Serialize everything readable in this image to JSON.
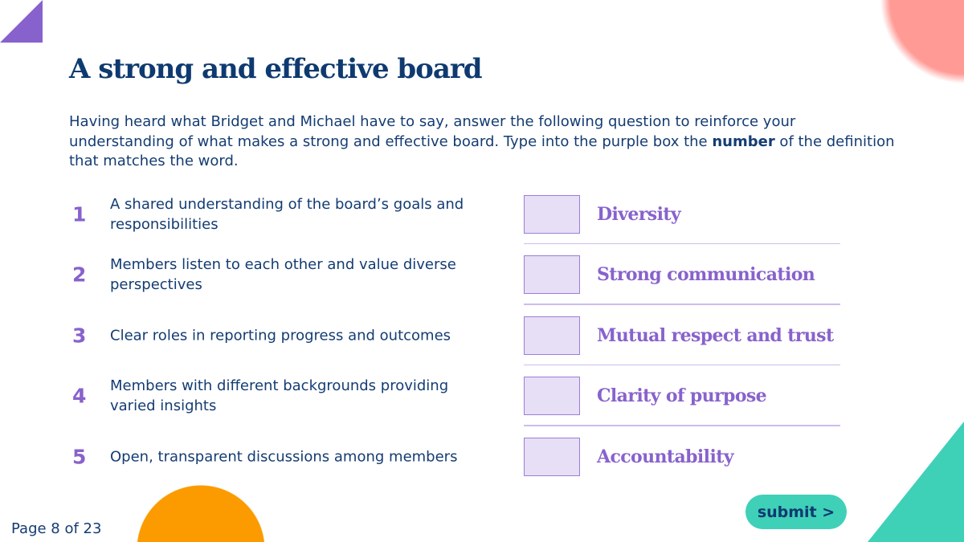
{
  "title": "A strong and effective board",
  "intro": {
    "before": "Having heard what Bridget and Michael have to say, answer the following question to reinforce your understanding of what makes a strong and effective board. Type into the purple box the ",
    "bold": "number",
    "after": " of the definition that matches the word."
  },
  "rows": [
    {
      "number": "1",
      "definition": "A shared understanding of the board’s goals and responsibilities",
      "answer": "",
      "word": "Diversity"
    },
    {
      "number": "2",
      "definition": "Members listen to each other and value diverse perspectives",
      "answer": "",
      "word": "Strong communication"
    },
    {
      "number": "3",
      "definition": "Clear roles in reporting progress and outcomes",
      "answer": "",
      "word": "Mutual respect and trust"
    },
    {
      "number": "4",
      "definition": "Members with different backgrounds providing varied insights",
      "answer": "",
      "word": "Clarity of purpose"
    },
    {
      "number": "5",
      "definition": "Open, transparent discussions among members",
      "answer": "",
      "word": "Accountability"
    }
  ],
  "submit_label": "submit >",
  "page_indicator": "Page 8 of 23",
  "colors": {
    "navy": "#0e3a70",
    "purple": "#8862cc",
    "input_bg": "#e7dff5",
    "teal": "#3fd0b8",
    "orange": "#fb9b00",
    "coral": "#ff9a95"
  }
}
